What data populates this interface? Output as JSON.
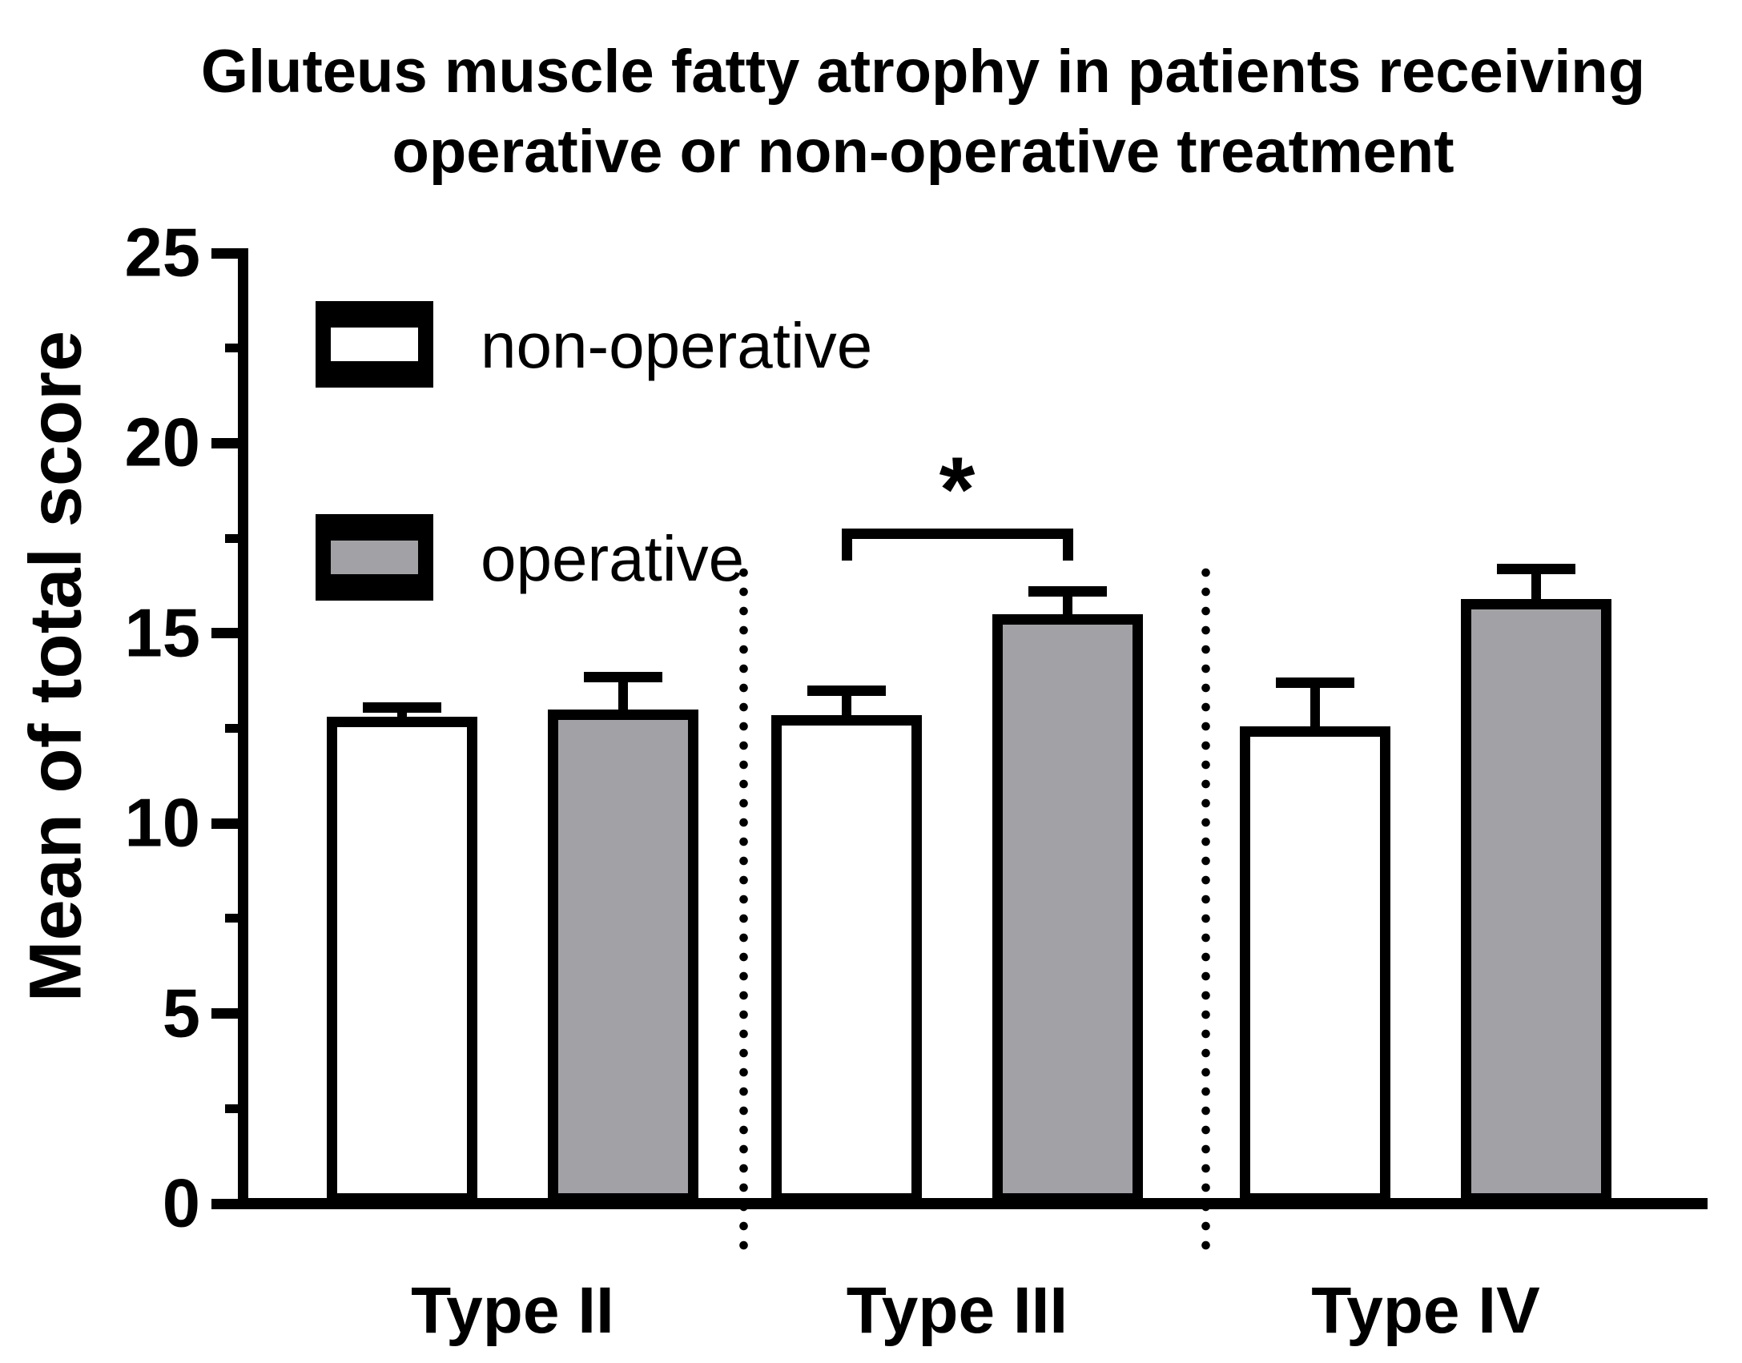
{
  "title": {
    "line1": "Gluteus muscle fatty atrophy in patients receiving",
    "line2": "operative or non-operative treatment"
  },
  "y_axis": {
    "label": "Mean of total score",
    "tick_labels": [
      "0",
      "5",
      "10",
      "15",
      "20",
      "25"
    ],
    "major_ticks": [
      0,
      5,
      10,
      15,
      20,
      25
    ],
    "minor_ticks": [
      2.5,
      7.5,
      12.5,
      17.5,
      22.5
    ],
    "max": 25
  },
  "legend": {
    "items": [
      {
        "label": "non-operative",
        "fill": "#ffffff"
      },
      {
        "label": "operative",
        "fill": "#a1a1a6"
      }
    ]
  },
  "significance": {
    "symbol": "*",
    "category": "Type III",
    "between": [
      "non-operative",
      "operative"
    ]
  },
  "colors": {
    "bar_outline": "#000000",
    "non_operative_fill": "#ffffff",
    "operative_fill": "#a1a1a6",
    "text": "#000000"
  },
  "chart_data": {
    "type": "bar",
    "title": "Gluteus muscle fatty atrophy in patients receiving operative or non-operative treatment",
    "xlabel": "",
    "ylabel": "Mean of total score",
    "ylim": [
      0,
      25
    ],
    "grid": false,
    "legend_position": "upper-left-inside",
    "categories": [
      "Type II",
      "Type III",
      "Type IV"
    ],
    "series": [
      {
        "name": "non-operative",
        "fill": "#ffffff",
        "values": [
          12.8,
          12.85,
          12.55
        ],
        "error_plus": [
          0.25,
          0.65,
          1.15
        ]
      },
      {
        "name": "operative",
        "fill": "#a1a1a6",
        "values": [
          13.0,
          15.5,
          15.9
        ],
        "error_plus": [
          0.85,
          0.6,
          0.8
        ]
      }
    ],
    "annotations": [
      {
        "type": "significance-bracket",
        "symbol": "*",
        "category": "Type III",
        "series": [
          "non-operative",
          "operative"
        ]
      },
      {
        "type": "dotted-separator",
        "between": [
          "Type II",
          "Type III"
        ]
      },
      {
        "type": "dotted-separator",
        "between": [
          "Type III",
          "Type IV"
        ]
      }
    ]
  }
}
